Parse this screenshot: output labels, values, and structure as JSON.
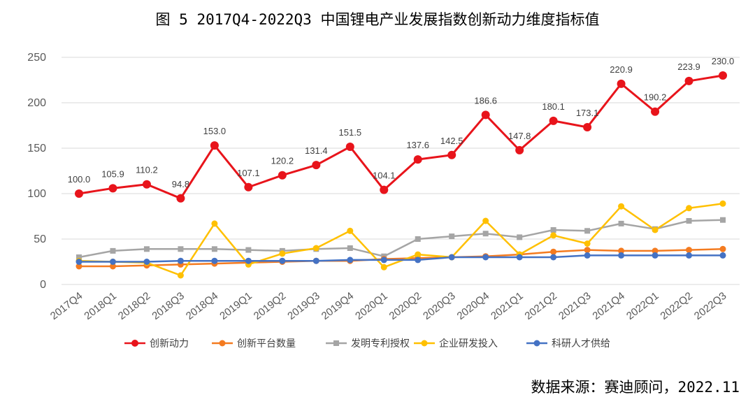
{
  "page": {
    "title": "图 5   2017Q4-2022Q3 中国锂电产业发展指数创新动力维度指标值",
    "source": "数据来源：赛迪顾问，2022.11"
  },
  "chart_data": {
    "type": "line",
    "title": "图 5   2017Q4-2022Q3 中国锂电产业发展指数创新动力维度指标值",
    "xlabel": "",
    "ylabel": "",
    "ylim": [
      0,
      250
    ],
    "yticks": [
      0,
      50,
      100,
      150,
      200,
      250
    ],
    "grid": "horizontal",
    "legend_position": "bottom",
    "categories": [
      "2017Q4",
      "2018Q1",
      "2018Q2",
      "2018Q3",
      "2018Q4",
      "2019Q1",
      "2019Q2",
      "2019Q3",
      "2019Q4",
      "2020Q1",
      "2020Q2",
      "2020Q3",
      "2020Q4",
      "2021Q1",
      "2021Q2",
      "2021Q3",
      "2021Q4",
      "2022Q1",
      "2022Q2",
      "2022Q3"
    ],
    "series": [
      {
        "name": "创新动力",
        "color": "#e8141b",
        "labeled": true,
        "values": [
          100.0,
          105.9,
          110.2,
          94.8,
          153.0,
          107.1,
          120.2,
          131.4,
          151.5,
          104.1,
          137.6,
          142.5,
          186.6,
          147.8,
          180.1,
          173.1,
          220.9,
          190.2,
          223.9,
          230.0
        ]
      },
      {
        "name": "创新平台数量",
        "color": "#f47b20",
        "labeled": false,
        "values": [
          20,
          20,
          21,
          22,
          23,
          24,
          25,
          26,
          26,
          28,
          29,
          30,
          31,
          33,
          36,
          38,
          37,
          37,
          38,
          39
        ]
      },
      {
        "name": "发明专利授权",
        "color": "#a5a5a5",
        "labeled": false,
        "values": [
          30,
          37,
          39,
          39,
          39,
          38,
          37,
          39,
          40,
          31,
          50,
          53,
          56,
          52,
          60,
          59,
          67,
          61,
          70,
          71
        ]
      },
      {
        "name": "企业研发投入",
        "color": "#ffc000",
        "labeled": false,
        "values": [
          26,
          25,
          24,
          10,
          67,
          22,
          34,
          40,
          59,
          19,
          33,
          30,
          70,
          33,
          54,
          45,
          86,
          60,
          84,
          89
        ]
      },
      {
        "name": "科研人才供给",
        "color": "#4472c4",
        "labeled": false,
        "values": [
          25,
          25,
          25,
          26,
          26,
          26,
          26,
          26,
          27,
          27,
          27,
          30,
          30,
          30,
          30,
          32,
          32,
          32,
          32,
          32
        ]
      }
    ]
  }
}
